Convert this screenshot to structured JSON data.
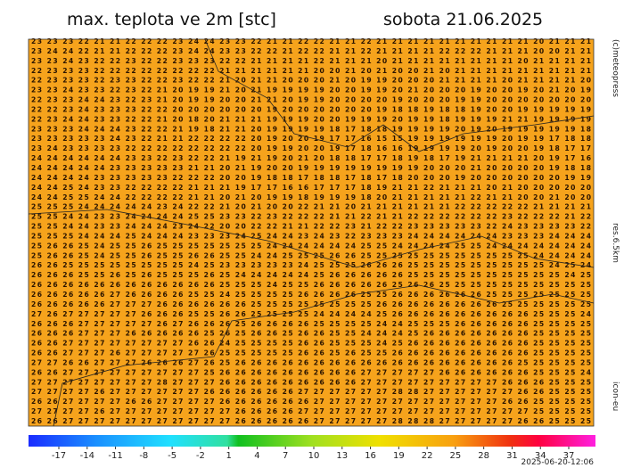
{
  "header": {
    "title": "max. teplota ve 2m [stc]",
    "date": "sobota 21.06.2025"
  },
  "side_labels": {
    "copyright": "(c)meteopress",
    "resolution": "res.6.5km",
    "model": "icon-eu"
  },
  "grid": {
    "rows": [
      "23 23 23 22 21 21 22 22 22 23 24 24 23 23 22 21 21 22 22 21 21 22 21 21 21 21 21 21 21 21 21 21 20 21 21 21",
      "23 24 24 22 21 21 22 22 22 23 24 24 23 23 22 22 21 22 22 21 21 22 21 21 21 21 22 22 22 21 21 21 20 20 21 21",
      "23 23 24 23 22 22 23 22 22 23 23 23 22 22 21 21 21 21 22 21 21 21 20 21 21 21 21 21 21 21 21 20 21 21 21 21",
      "22 23 23 23 22 22 22 22 22 22 22 22 21 21 21 21 21 21 20 20 21 20 21 20 20 21 20 21 21 21 21 21 21 21 21 21",
      "22 23 23 23 22 23 23 22 22 23 22 22 21 20 21 21 20 20 20 21 20 19 19 20 20 20 21 21 21 21 20 21 21 21 21 20",
      "23 23 24 23 23 22 23 22 21 20 19 19 21 20 21 19 19 19 19 20 20 19 19 20 21 20 20 20 19 20 20 19 20 21 20 19",
      "22 23 23 24 24 23 22 23 21 20 19 19 20 20 21 21 20 19 19 20 20 20 20 19 20 20 20 19 19 20 20 20 20 20 20 20",
      "22 22 23 24 23 23 23 22 22 20 20 20 20 20 20 19 20 20 20 20 20 20 19 18 18 19 18 18 19 20 20 19 19 19 19 19",
      "22 23 24 24 23 23 22 22 21 20 18 20 21 21 21 19 19 19 20 20 19 19 19 20 19 19 18 19 19 19 21 21 19 19 19 19",
      "23 23 23 24 24 24 23 22 22 21 19 18 21 21 20 19 19 19 19 18 17 18 18 19 19 19 19 20 19 20 19 19 19 19 19 18",
      "23 23 23 23 23 24 23 22 21 21 22 22 22 22 20 19 20 20 19 17 17 16 15 15 19 19 19 19 19 19 20 19 19 17 18 18",
      "23 24 23 23 23 23 22 22 22 22 22 22 22 22 20 19 19 20 20 19 17 18 16 16 19 19 19 19 20 19 20 20 19 18 17 17",
      "24 24 24 24 24 24 23 23 22 23 22 22 21 19 21 19 20 21 20 18 18 17 17 18 19 18 17 19 21 21 21 21 20 19 17 16",
      "24 24 24 24 24 23 23 23 23 23 21 21 20 21 19 20 20 19 19 19 19 19 19 19 19 20 20 20 21 20 20 20 20 19 18 18",
      "24 24 24 24 23 23 23 23 23 22 22 22 20 20 19 18 18 17 18 18 17 18 17 18 20 20 20 19 20 20 20 20 20 20 19 19",
      "24 24 25 24 23 23 22 22 22 22 21 21 21 19 17 17 16 16 17 17 17 18 19 21 21 22 21 21 21 20 21 20 20 20 20 20",
      "24 24 25 25 24 24 22 22 22 22 21 21 20 21 20 19 19 18 19 19 19 18 20 21 21 21 21 21 22 21 21 20 20 21 20 20",
      "25 25 25 24 24 24 24 24 23 24 22 22 21 20 21 20 20 22 21 21 20 21 21 21 21 21 21 22 22 22 22 22 21 21 21 21",
      "25 25 24 24 23 23 24 24 24 24 25 25 23 23 22 23 22 22 22 21 21 22 21 21 22 22 22 22 22 22 23 22 22 22 21 22",
      "25 25 24 24 23 23 24 24 24 23 24 22 20 20 22 22 21 21 22 22 23 21 22 22 23 23 23 23 23 22 24 23 23 23 23 22",
      "25 25 25 24 24 24 25 24 24 24 23 23 23 24 25 24 24 23 24 23 22 23 23 23 24 24 24 24 24 24 23 23 23 24 24 24",
      "25 26 26 25 24 25 25 26 25 25 25 25 25 25 25 24 24 24 24 24 24 25 25 24 24 24 24 25 25 24 24 24 24 24 24 24",
      "25 26 26 25 24 25 25 26 25 25 26 26 25 25 24 24 25 25 25 26 26 25 25 25 25 25 25 25 25 25 25 25 24 24 24 24",
      "26 26 25 25 25 25 25 25 25 25 24 25 23 23 23 23 23 24 25 25 25 26 26 26 25 25 25 25 25 25 25 25 25 24 25 24",
      "26 26 26 25 25 26 25 26 25 25 25 26 25 24 24 24 24 24 25 26 26 26 26 26 25 25 25 25 25 25 25 25 25 25 24 25",
      "26 26 26 26 26 26 26 26 26 26 26 26 25 25 25 24 25 25 26 26 26 26 26 25 26 26 25 25 25 25 25 25 25 25 25 25",
      "26 26 26 26 26 27 26 26 26 26 25 25 24 25 25 25 25 26 26 26 26 25 25 26 26 26 26 26 26 25 25 25 25 25 25 25",
      "26 26 26 26 26 27 27 27 26 26 26 26 26 26 25 25 25 25 25 25 25 25 26 26 26 26 26 26 26 26 25 25 25 25 25 25",
      "27 26 27 27 27 27 27 26 26 26 25 25 26 26 25 25 25 25 24 24 24 24 25 26 26 26 26 26 26 26 26 26 25 25 25 24",
      "26 26 26 27 27 27 27 27 26 27 26 26 26 25 26 26 26 26 25 25 25 25 24 24 25 25 25 26 26 26 26 26 25 25 25 25",
      "26 26 26 27 27 27 26 26 26 26 26 25 26 25 26 26 25 26 26 25 25 24 24 24 25 26 26 26 26 26 26 26 25 25 25 25",
      "26 26 27 27 27 27 27 27 27 27 26 26 24 25 25 25 25 26 26 25 25 25 24 25 26 26 26 26 26 26 26 26 25 25 25 25",
      "26 26 27 27 27 26 27 27 27 27 27 26 25 25 25 25 25 26 26 25 26 25 25 26 26 26 26 26 26 26 26 26 25 25 25 25",
      "27 27 26 26 27 27 27 26 26 26 27 26 25 26 26 26 26 26 26 26 26 26 26 26 26 26 26 26 26 26 26 25 25 25 25 25",
      "26 26 27 27 27 27 27 27 27 27 27 25 26 26 26 26 26 26 26 26 26 27 27 27 27 27 26 26 26 26 26 26 25 25 25 24",
      "27 27 27 27 27 27 27 27 28 27 27 27 26 26 26 26 26 26 26 26 26 27 27 27 27 27 27 27 27 27 26 26 26 25 25 25",
      "27 27 27 27 26 27 27 27 27 27 27 26 26 26 26 26 26 27 27 27 27 27 27 28 28 27 27 27 27 27 27 26 26 25 25 25",
      "26 26 27 27 27 27 26 26 27 27 27 27 26 26 26 26 26 26 27 27 27 27 27 27 27 27 27 27 27 27 26 26 25 25 25 25",
      "27 27 27 27 26 27 27 27 27 27 27 27 27 26 26 26 26 27 27 27 27 27 27 27 27 27 27 27 27 27 27 27 25 25 25 25",
      "26 26 27 27 27 27 27 27 27 27 27 27 27 26 26 26 26 26 27 27 27 27 27 28 28 28 27 27 27 27 27 26 26 25 25 25"
    ]
  },
  "colorbar": {
    "ticks": [
      -17,
      -14,
      -11,
      -8,
      -5,
      -2,
      1,
      4,
      7,
      10,
      13,
      16,
      19,
      22,
      25,
      28,
      31,
      34,
      37
    ]
  },
  "timestamp": "2025-06-20-12:06"
}
